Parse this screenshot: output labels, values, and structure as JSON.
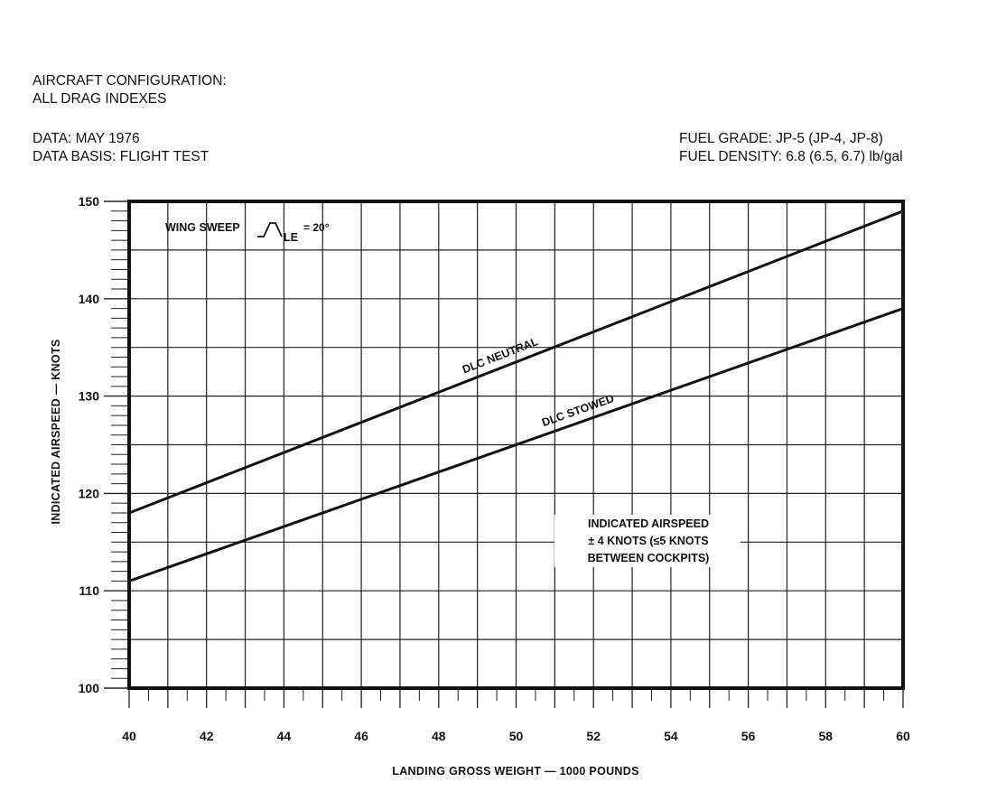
{
  "header": {
    "config_line1": "AIRCRAFT CONFIGURATION:",
    "config_line2": "ALL DRAG INDEXES",
    "data_line": "DATA:  MAY 1976",
    "basis_line": "DATA BASIS:  FLIGHT TEST",
    "fuel_grade": "FUEL GRADE:  JP-5 (JP-4, JP-8)",
    "fuel_density": "FUEL DENSITY:  6.8 (6.5, 6.7) lb/gal"
  },
  "chart_data": {
    "type": "line",
    "title": "",
    "xlabel": "LANDING GROSS WEIGHT  —  1000 POUNDS",
    "ylabel": "INDICATED AIRSPEED  —  KNOTS",
    "xlim": [
      40,
      60
    ],
    "ylim": [
      100,
      150
    ],
    "x_ticks": [
      40,
      42,
      44,
      46,
      48,
      50,
      52,
      54,
      56,
      58,
      60
    ],
    "y_ticks": [
      100,
      110,
      120,
      130,
      140,
      150
    ],
    "x_tick_labels": [
      "40",
      "42",
      "44",
      "46",
      "48",
      "50",
      "52",
      "54",
      "56",
      "58",
      "60"
    ],
    "y_tick_labels": [
      "100",
      "110",
      "120",
      "130",
      "140",
      "150"
    ],
    "grid": true,
    "series": [
      {
        "name": "DLC NEUTRAL",
        "x": [
          40,
          60
        ],
        "y": [
          118,
          149
        ]
      },
      {
        "name": "DLC STOWED",
        "x": [
          40,
          60
        ],
        "y": [
          111,
          139
        ]
      }
    ],
    "annotations": {
      "wing_sweep_text": "WING SWEEP",
      "wing_sweep_subscript": "LE",
      "wing_sweep_value": "= 20°",
      "accuracy_line1": "INDICATED AIRSPEED",
      "accuracy_line2": "± 4  KNOTS (≤5 KNOTS",
      "accuracy_line3": "BETWEEN COCKPITS)"
    }
  }
}
